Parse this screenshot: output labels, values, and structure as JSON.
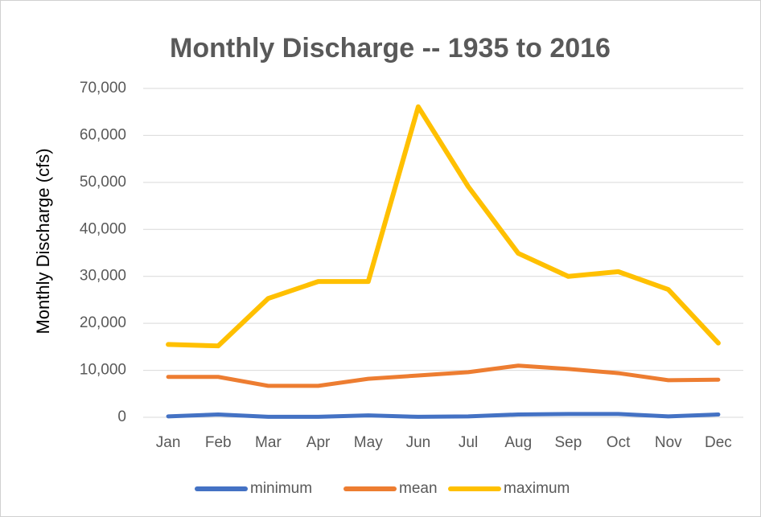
{
  "chart_data": {
    "type": "line",
    "title": "Monthly Discharge -- 1935 to 2016",
    "y_label": "Monthly Discharge (cfs)",
    "categories": [
      "Jan",
      "Feb",
      "Mar",
      "Apr",
      "May",
      "Jun",
      "Jul",
      "Aug",
      "Sep",
      "Oct",
      "Nov",
      "Dec"
    ],
    "series": [
      {
        "name": "minimum",
        "color": "#4472c4",
        "values": [
          200,
          600,
          100,
          100,
          400,
          100,
          200,
          600,
          700,
          700,
          200,
          600
        ]
      },
      {
        "name": "mean",
        "color": "#ed7d31",
        "values": [
          8600,
          8600,
          6700,
          6700,
          8200,
          8900,
          9600,
          11000,
          10300,
          9400,
          7900,
          8000
        ]
      },
      {
        "name": "maximum",
        "color": "#ffc000",
        "values": [
          15500,
          15200,
          25300,
          28900,
          28900,
          66100,
          49100,
          34900,
          30000,
          31000,
          27200,
          15800
        ]
      }
    ],
    "ylim": [
      0,
      70000
    ],
    "yticks": [
      0,
      {
        "value": 10000,
        "label": "10,000"
      },
      {
        "value": 20000,
        "label": "20,000"
      },
      {
        "value": 30000,
        "label": "30,000"
      },
      {
        "value": 40000,
        "label": "40,000"
      },
      {
        "value": 50000,
        "label": "50,000"
      },
      {
        "value": 60000,
        "label": "60,000"
      },
      {
        "value": 70000,
        "label": "70,000"
      }
    ],
    "grid": true,
    "legend": "bottom"
  }
}
